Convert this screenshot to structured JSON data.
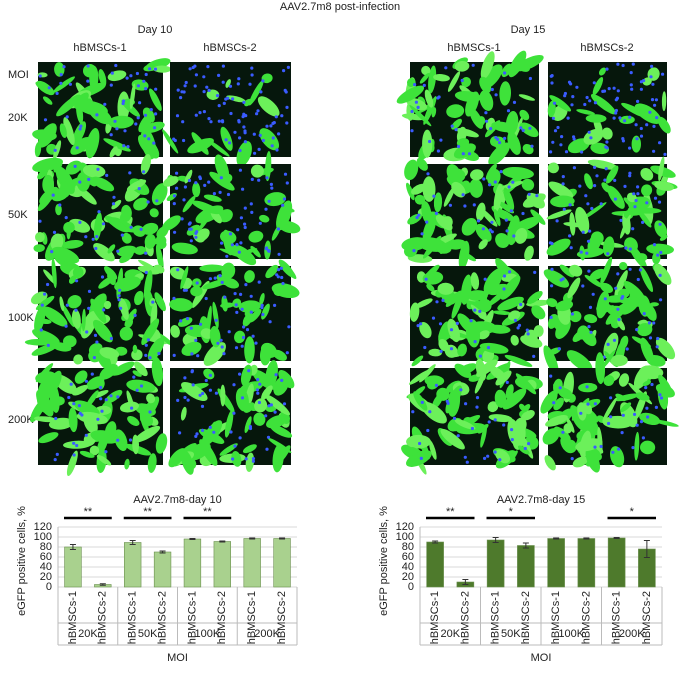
{
  "figure": {
    "title": "AAV2.7m8 post-infection",
    "panels": [
      {
        "title": "Day 10",
        "columns": [
          "hBMSCs-1",
          "hBMSCs-2"
        ]
      },
      {
        "title": "Day 15",
        "columns": [
          "hBMSCs-1",
          "hBMSCs-2"
        ]
      }
    ],
    "row_header": "MOI",
    "rows": [
      "20K",
      "50K",
      "100K",
      "200K"
    ]
  },
  "chart_data": [
    {
      "type": "bar",
      "title": "AAV2.7m8-day 10",
      "y_label": "eGFP positive cells, %",
      "x_label": "MOI",
      "groups": [
        "20K",
        "50K",
        "100K",
        "200K"
      ],
      "categories": [
        "hBMSCs-1",
        "hBMSCs-2",
        "hBMSCs-1",
        "hBMSCs-2",
        "hBMSCs-1",
        "hBMSCs-2",
        "hBMSCs-1",
        "hBMSCs-2"
      ],
      "values": [
        80,
        5,
        89,
        70,
        96,
        91,
        97,
        97
      ],
      "errors": [
        5,
        1.5,
        4,
        2,
        1,
        1,
        1,
        1
      ],
      "significance": [
        "**",
        "**",
        "**",
        null
      ],
      "color": "#a9d18e",
      "ylim": [
        0,
        120
      ],
      "yticks": [
        0,
        20,
        40,
        60,
        80,
        100,
        120
      ],
      "grid": true
    },
    {
      "type": "bar",
      "title": "AAV2.7m8-day 15",
      "y_label": "eGFP positive cells, %",
      "x_label": "MOI",
      "groups": [
        "20K",
        "50K",
        "100K",
        "200K"
      ],
      "categories": [
        "hBMSCs-1",
        "hBMSCs-2",
        "hBMSCs-1",
        "hBMSCs-2",
        "hBMSCs-1",
        "hBMSCs-2",
        "hBMSCs-1",
        "hBMSCs-2"
      ],
      "values": [
        90,
        10,
        94,
        83,
        97,
        97,
        98,
        76
      ],
      "errors": [
        2,
        5,
        5,
        5,
        1,
        1,
        1,
        17
      ],
      "significance": [
        "**",
        "*",
        null,
        "*"
      ],
      "color": "#4e7a2c",
      "ylim": [
        0,
        120
      ],
      "yticks": [
        0,
        20,
        40,
        60,
        80,
        100,
        120
      ],
      "grid": true
    }
  ]
}
